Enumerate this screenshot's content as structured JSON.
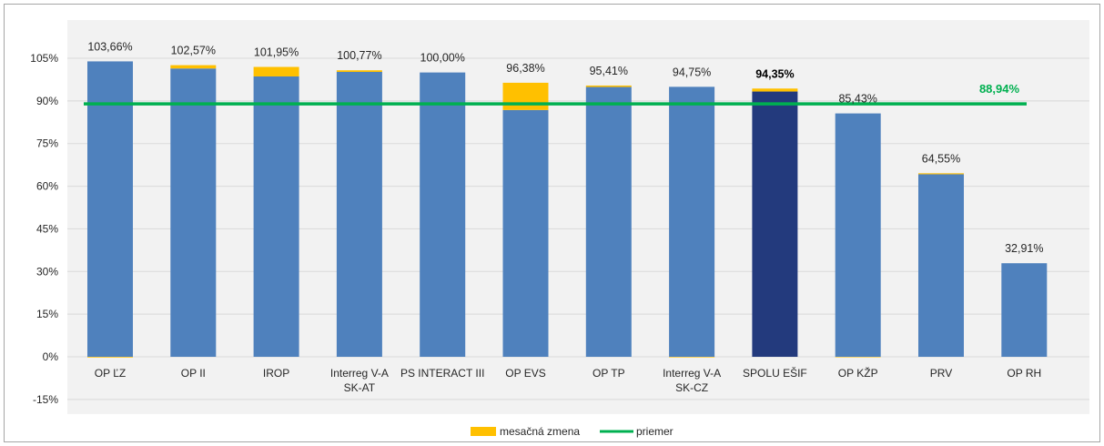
{
  "chart_data": {
    "type": "bar",
    "title": "",
    "xlabel": "",
    "ylabel": "",
    "ylim": [
      -15,
      110
    ],
    "yticks": [
      "-15%",
      "0%",
      "15%",
      "30%",
      "45%",
      "60%",
      "75%",
      "90%",
      "105%"
    ],
    "ytick_values": [
      -15,
      0,
      15,
      30,
      45,
      60,
      75,
      90,
      105
    ],
    "grid": true,
    "legend_position": "bottom-center",
    "categories": [
      [
        "OP ĽZ"
      ],
      [
        "OP II"
      ],
      [
        "IROP"
      ],
      [
        "Interreg V-A",
        "SK-AT"
      ],
      [
        "PS INTERACT III"
      ],
      [
        "OP EVS"
      ],
      [
        "OP TP"
      ],
      [
        "Interreg V-A",
        "SK-CZ"
      ],
      [
        "SPOLU EŠIF"
      ],
      [
        "OP KŽP"
      ],
      [
        "PRV"
      ],
      [
        "OP RH"
      ]
    ],
    "totals": [
      103.66,
      102.57,
      101.95,
      100.77,
      100.0,
      96.38,
      95.41,
      94.75,
      94.35,
      85.43,
      64.55,
      32.91
    ],
    "total_labels": [
      "103,66%",
      "102,57%",
      "101,95%",
      "100,77%",
      "100,00%",
      "96,38%",
      "95,41%",
      "94,75%",
      "94,35%",
      "85,43%",
      "64,55%",
      "32,91%"
    ],
    "highlight_index": 8,
    "series": [
      {
        "name": "",
        "color": "#4f81bd",
        "highlight_color": "#233a7d",
        "values": [
          103.9,
          101.4,
          98.6,
          100.2,
          100.0,
          86.8,
          94.9,
          94.95,
          93.3,
          85.6,
          64.2,
          32.91
        ]
      },
      {
        "name": "mesačná zmena",
        "color": "#ffc000",
        "values": [
          -0.24,
          1.17,
          3.35,
          0.57,
          0.0,
          9.58,
          0.51,
          -0.2,
          1.05,
          -0.17,
          0.35,
          0.0
        ]
      },
      {
        "name": "priemer",
        "color": "#00b050",
        "type": "line",
        "value": 88.94,
        "label": "88,94%"
      }
    ]
  },
  "legend": {
    "items": [
      {
        "label": "mesačná zmena",
        "color": "#ffc000",
        "kind": "rect"
      },
      {
        "label": "priemer",
        "color": "#00b050",
        "kind": "line"
      }
    ]
  }
}
